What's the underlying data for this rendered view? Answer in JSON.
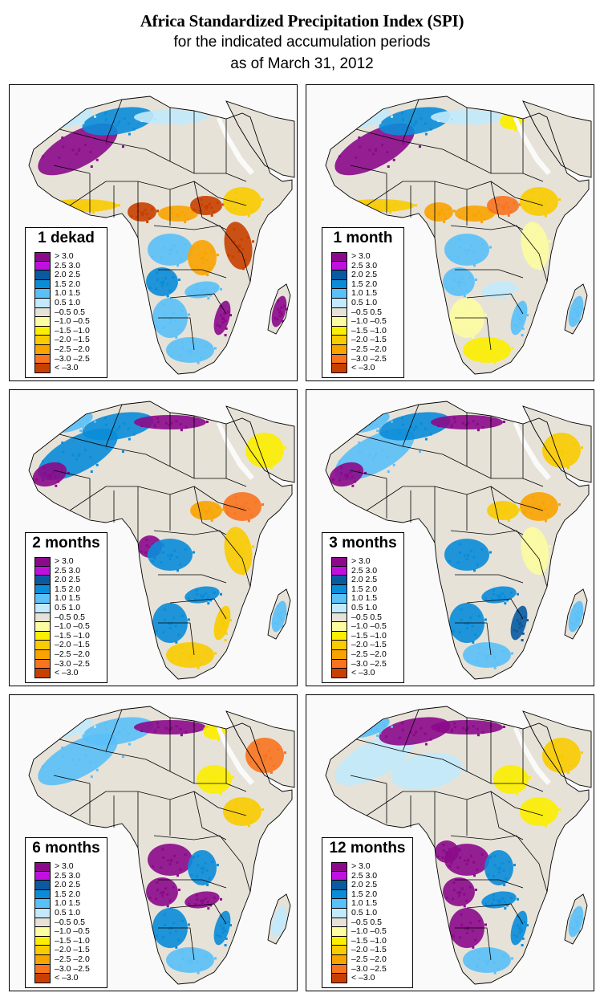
{
  "title": {
    "main": "Africa Standardized Precipitation Index (SPI)",
    "line2": "for the indicated accumulation periods",
    "line3": "as of March 31, 2012"
  },
  "legend": {
    "classes": [
      {
        "label": "> 3.0",
        "color": "#8b0a8b"
      },
      {
        "label": "2.5  3.0",
        "color": "#c010e0"
      },
      {
        "label": "2.0  2.5",
        "color": "#0a5aa0"
      },
      {
        "label": "1.5  2.0",
        "color": "#0a8cd8"
      },
      {
        "label": "1.0  1.5",
        "color": "#5ac0f8"
      },
      {
        "label": "0.5  1.0",
        "color": "#c2eafc"
      },
      {
        "label": "–0.5  0.5",
        "color": "#e6e2d8"
      },
      {
        "label": "–1.0 –0.5",
        "color": "#fcfca0"
      },
      {
        "label": "–1.5 –1.0",
        "color": "#fcee00"
      },
      {
        "label": "–2.0 –1.5",
        "color": "#f8cc00"
      },
      {
        "label": "–2.5 –2.0",
        "color": "#f8a400"
      },
      {
        "label": "–3.0 –2.5",
        "color": "#f87420"
      },
      {
        "label": "< –3.0",
        "color": "#c84000"
      }
    ]
  },
  "colors": {
    "land_neutral": "#e6e2d8",
    "ocean": "#fafafa",
    "border": "#000000"
  },
  "panels": [
    {
      "id": "1-dekad",
      "label": "1 dekad",
      "anomalies": [
        {
          "region": "nw-sahara-mauritania",
          "class": 0
        },
        {
          "region": "algeria-north",
          "class": 3
        },
        {
          "region": "morocco",
          "class": 5
        },
        {
          "region": "libya-north",
          "class": 5
        },
        {
          "region": "west-africa-coast",
          "class": 9
        },
        {
          "region": "nigeria-cameroon",
          "class": 12
        },
        {
          "region": "central-african-republic",
          "class": 10
        },
        {
          "region": "south-sudan",
          "class": 12
        },
        {
          "region": "ethiopia",
          "class": 9
        },
        {
          "region": "kenya-tanzania",
          "class": 12
        },
        {
          "region": "dr-congo-north",
          "class": 4
        },
        {
          "region": "dr-congo-east",
          "class": 10
        },
        {
          "region": "angola",
          "class": 3
        },
        {
          "region": "zambia",
          "class": 4
        },
        {
          "region": "namibia-botswana",
          "class": 4
        },
        {
          "region": "south-africa",
          "class": 4
        },
        {
          "region": "mozambique",
          "class": 0
        },
        {
          "region": "madagascar",
          "class": 0
        }
      ]
    },
    {
      "id": "1-month",
      "label": "1 month",
      "anomalies": [
        {
          "region": "nw-sahara-mauritania",
          "class": 0
        },
        {
          "region": "algeria-north",
          "class": 3
        },
        {
          "region": "morocco",
          "class": 5
        },
        {
          "region": "libya-north",
          "class": 5
        },
        {
          "region": "egypt",
          "class": 8
        },
        {
          "region": "west-africa-coast",
          "class": 9
        },
        {
          "region": "nigeria-cameroon",
          "class": 10
        },
        {
          "region": "central-african-republic",
          "class": 10
        },
        {
          "region": "south-sudan",
          "class": 11
        },
        {
          "region": "ethiopia",
          "class": 9
        },
        {
          "region": "kenya-tanzania",
          "class": 7
        },
        {
          "region": "dr-congo-north",
          "class": 4
        },
        {
          "region": "angola",
          "class": 4
        },
        {
          "region": "zambia",
          "class": 5
        },
        {
          "region": "namibia-botswana",
          "class": 7
        },
        {
          "region": "south-africa",
          "class": 8
        },
        {
          "region": "mozambique",
          "class": 4
        },
        {
          "region": "madagascar",
          "class": 4
        }
      ]
    },
    {
      "id": "2-months",
      "label": "2 months",
      "anomalies": [
        {
          "region": "nw-sahara-mauritania",
          "class": 3
        },
        {
          "region": "mauritania-west",
          "class": 0
        },
        {
          "region": "algeria-north",
          "class": 3
        },
        {
          "region": "libya-north",
          "class": 0
        },
        {
          "region": "morocco",
          "class": 4
        },
        {
          "region": "saudi-arabia",
          "class": 8
        },
        {
          "region": "ethiopia",
          "class": 11
        },
        {
          "region": "south-sudan",
          "class": 10
        },
        {
          "region": "kenya-tanzania",
          "class": 9
        },
        {
          "region": "gabon-congo",
          "class": 0
        },
        {
          "region": "dr-congo-north",
          "class": 3
        },
        {
          "region": "zambia",
          "class": 3
        },
        {
          "region": "namibia-botswana",
          "class": 3
        },
        {
          "region": "south-africa",
          "class": 9
        },
        {
          "region": "mozambique",
          "class": 9
        },
        {
          "region": "madagascar",
          "class": 4
        }
      ]
    },
    {
      "id": "3-months",
      "label": "3 months",
      "anomalies": [
        {
          "region": "nw-sahara-mauritania",
          "class": 4
        },
        {
          "region": "mauritania-west",
          "class": 0
        },
        {
          "region": "algeria-north",
          "class": 3
        },
        {
          "region": "libya-north",
          "class": 0
        },
        {
          "region": "morocco",
          "class": 4
        },
        {
          "region": "saudi-arabia",
          "class": 9
        },
        {
          "region": "ethiopia",
          "class": 10
        },
        {
          "region": "south-sudan",
          "class": 9
        },
        {
          "region": "kenya-tanzania",
          "class": 7
        },
        {
          "region": "dr-congo-north",
          "class": 3
        },
        {
          "region": "zambia",
          "class": 3
        },
        {
          "region": "namibia-botswana",
          "class": 3
        },
        {
          "region": "south-africa",
          "class": 4
        },
        {
          "region": "mozambique",
          "class": 2
        },
        {
          "region": "madagascar",
          "class": 4
        }
      ]
    },
    {
      "id": "6-months",
      "label": "6 months",
      "anomalies": [
        {
          "region": "nw-sahara-mauritania",
          "class": 4
        },
        {
          "region": "algeria-north",
          "class": 4
        },
        {
          "region": "libya-north",
          "class": 0
        },
        {
          "region": "morocco",
          "class": 5
        },
        {
          "region": "egypt",
          "class": 8
        },
        {
          "region": "saudi-arabia",
          "class": 11
        },
        {
          "region": "ethiopia",
          "class": 9
        },
        {
          "region": "sudan",
          "class": 8
        },
        {
          "region": "dr-congo-north",
          "class": 0
        },
        {
          "region": "dr-congo-east",
          "class": 3
        },
        {
          "region": "angola",
          "class": 0
        },
        {
          "region": "zambia",
          "class": 0
        },
        {
          "region": "namibia-botswana",
          "class": 3
        },
        {
          "region": "south-africa",
          "class": 4
        },
        {
          "region": "mozambique",
          "class": 3
        },
        {
          "region": "madagascar",
          "class": 5
        }
      ]
    },
    {
      "id": "12-months",
      "label": "12 months",
      "anomalies": [
        {
          "region": "nw-sahara-mauritania",
          "class": 5
        },
        {
          "region": "algeria-north",
          "class": 0
        },
        {
          "region": "libya-north",
          "class": 0
        },
        {
          "region": "morocco",
          "class": 4
        },
        {
          "region": "mali-niger",
          "class": 5
        },
        {
          "region": "saudi-arabia",
          "class": 9
        },
        {
          "region": "ethiopia",
          "class": 8
        },
        {
          "region": "sudan",
          "class": 8
        },
        {
          "region": "gabon-congo",
          "class": 0
        },
        {
          "region": "dr-congo-north",
          "class": 0
        },
        {
          "region": "dr-congo-east",
          "class": 3
        },
        {
          "region": "angola",
          "class": 0
        },
        {
          "region": "zambia",
          "class": 3
        },
        {
          "region": "namibia-botswana",
          "class": 0
        },
        {
          "region": "south-africa",
          "class": 4
        },
        {
          "region": "mozambique",
          "class": 3
        },
        {
          "region": "madagascar",
          "class": 4
        }
      ]
    }
  ]
}
